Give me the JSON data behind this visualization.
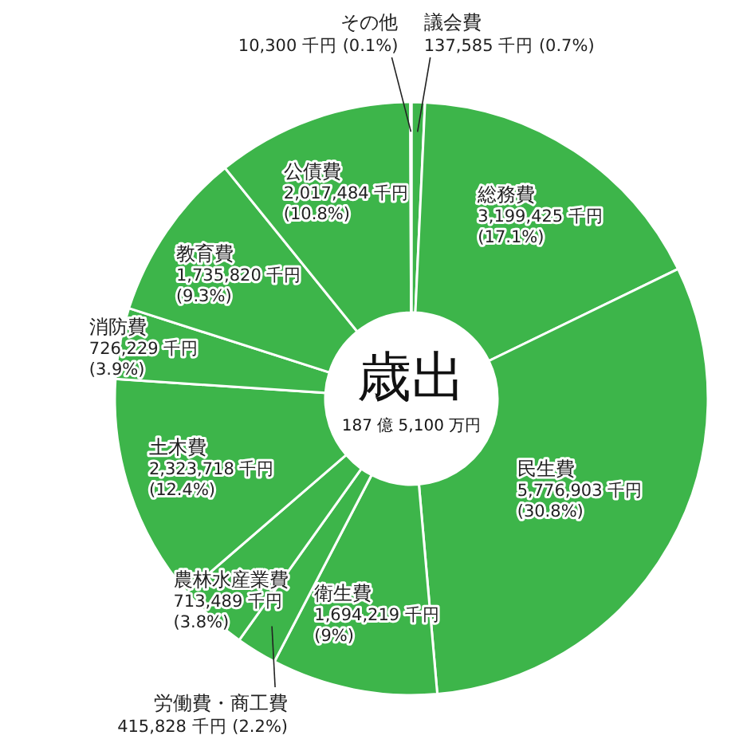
{
  "chart_data": {
    "type": "donut",
    "title": "歳出",
    "subtitle": "187 億 5,100 万円",
    "categories": [
      "議会費",
      "総務費",
      "民生費",
      "衛生費",
      "労働費・商工費",
      "農林水産業費",
      "土木費",
      "消防費",
      "教育費",
      "公債費",
      "その他"
    ],
    "values": [
      137585,
      3199425,
      5776903,
      1694219,
      415828,
      713489,
      2323718,
      726229,
      1735820,
      2017484,
      10300
    ],
    "value_labels": [
      "137,585 千円 (0.7%)",
      "3,199,425 千円 (17.1%)",
      "5,776,903 千円 (30.8%)",
      "1,694,219 千円 (9%)",
      "415,828 千円 (2.2%)",
      "713,489 千円 (3.8%)",
      "2,323,718 千円 (12.4%)",
      "726,229 千円 (3.9%)",
      "1,735,820 千円 (9.3%)",
      "2,017,484 千円 (10.8%)",
      "10,300 千円 (0.1%)"
    ],
    "colors": [
      "#3db54a",
      "#3db54a",
      "#3db54a",
      "#3db54a",
      "#3db54a",
      "#3db54a",
      "#3db54a",
      "#3db54a",
      "#3db54a",
      "#3db54a",
      "#3db54a"
    ]
  }
}
